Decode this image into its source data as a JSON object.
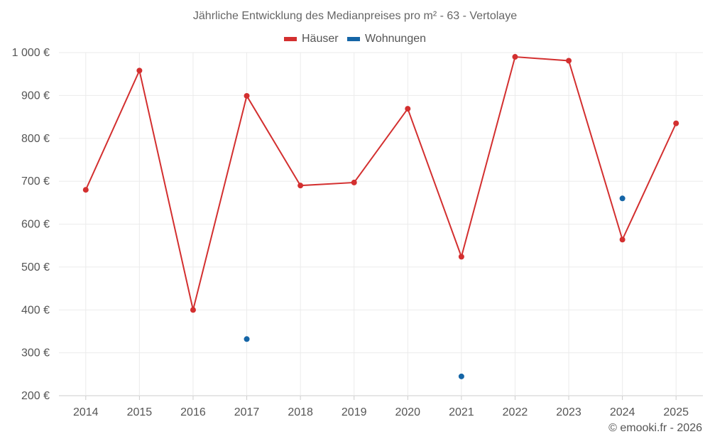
{
  "chart_data": {
    "type": "line",
    "title": "Jährliche Entwicklung des Medianpreises pro m² - 63 - Vertolaye",
    "categories": [
      "2014",
      "2015",
      "2016",
      "2017",
      "2018",
      "2019",
      "2020",
      "2021",
      "2022",
      "2023",
      "2024",
      "2025"
    ],
    "y_ticks": [
      "1 000 €",
      "900 €",
      "800 €",
      "700 €",
      "600 €",
      "500 €",
      "400 €",
      "300 €",
      "200 €"
    ],
    "ylim": [
      200,
      1000
    ],
    "grid": true,
    "legend_position": "top-center",
    "series": [
      {
        "name": "Häuser",
        "color": "#d32f2f",
        "style": "line",
        "values": [
          680,
          958,
          400,
          899,
          690,
          697,
          869,
          524,
          990,
          981,
          564,
          835
        ]
      },
      {
        "name": "Wohnungen",
        "color": "#1565a6",
        "style": "points",
        "values": [
          null,
          null,
          null,
          332,
          null,
          null,
          null,
          245,
          null,
          null,
          660,
          null
        ]
      }
    ],
    "credit": "© emooki.fr - 2026"
  }
}
